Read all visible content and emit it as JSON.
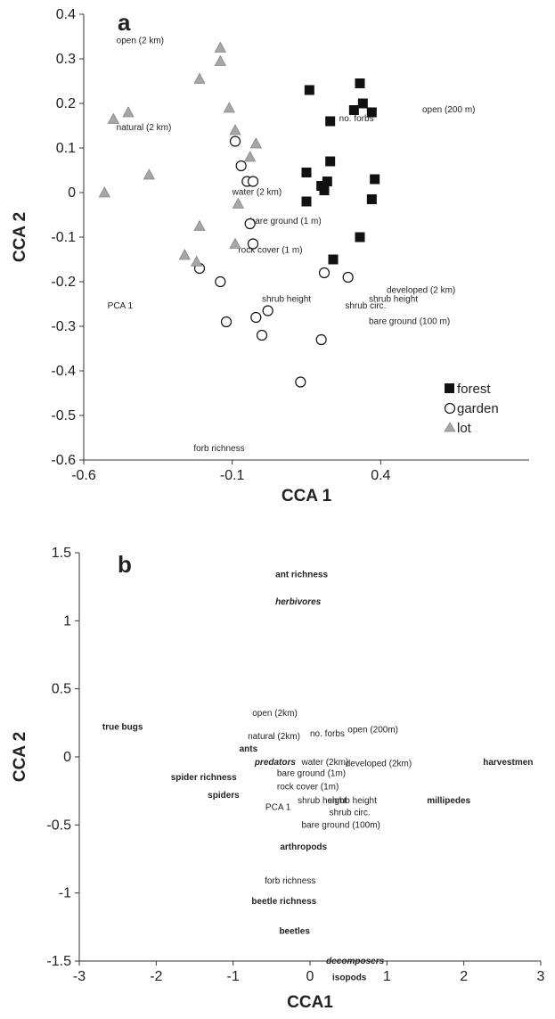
{
  "chart_data": [
    {
      "type": "scatter",
      "panel_label": "a",
      "xlabel": "CCA 1",
      "ylabel": "CCA 2",
      "xlim": [
        -0.6,
        0.9
      ],
      "ylim": [
        -0.6,
        0.4
      ],
      "xticks": [
        -0.6,
        -0.1,
        0.4
      ],
      "xtick_labels": [
        "-0.6",
        "-0.1",
        "0.4"
      ],
      "yticks": [
        -0.6,
        -0.5,
        -0.4,
        -0.3,
        -0.2,
        -0.1,
        0,
        0.1,
        0.2,
        0.3,
        0.4
      ],
      "ytick_labels": [
        "-0.6",
        "-0.5",
        "-0.4",
        "-0.3",
        "-0.2",
        "-0.1",
        "0",
        "0.1",
        "0.2",
        "0.3",
        "0.4"
      ],
      "grid": false,
      "legend_position": "bottom-right",
      "series": [
        {
          "name": "forest",
          "marker": "square",
          "color": "#111111",
          "points": [
            [
              0.16,
              0.23
            ],
            [
              0.33,
              0.245
            ],
            [
              0.34,
              0.2
            ],
            [
              0.31,
              0.185
            ],
            [
              0.37,
              0.18
            ],
            [
              0.23,
              0.16
            ],
            [
              0.38,
              0.03
            ],
            [
              0.23,
              0.07
            ],
            [
              0.15,
              0.045
            ],
            [
              0.2,
              0.015
            ],
            [
              0.22,
              0.025
            ],
            [
              0.21,
              0.005
            ],
            [
              0.37,
              -0.015
            ],
            [
              0.15,
              -0.02
            ],
            [
              0.24,
              -0.15
            ],
            [
              0.33,
              -0.1
            ]
          ]
        },
        {
          "name": "garden",
          "marker": "circle",
          "color": "#ffffff",
          "points": [
            [
              -0.09,
              0.115
            ],
            [
              -0.07,
              0.06
            ],
            [
              -0.05,
              0.025
            ],
            [
              -0.03,
              0.025
            ],
            [
              -0.04,
              -0.07
            ],
            [
              -0.03,
              -0.115
            ],
            [
              -0.21,
              -0.17
            ],
            [
              -0.14,
              -0.2
            ],
            [
              -0.12,
              -0.29
            ],
            [
              -0.02,
              -0.28
            ],
            [
              0.02,
              -0.265
            ],
            [
              0.0,
              -0.32
            ],
            [
              0.21,
              -0.18
            ],
            [
              0.29,
              -0.19
            ],
            [
              0.2,
              -0.33
            ],
            [
              0.13,
              -0.425
            ]
          ]
        },
        {
          "name": "lot",
          "marker": "triangle",
          "color": "#a6a6a6",
          "points": [
            [
              -0.14,
              0.325
            ],
            [
              -0.14,
              0.295
            ],
            [
              -0.21,
              0.255
            ],
            [
              -0.11,
              0.19
            ],
            [
              -0.09,
              0.14
            ],
            [
              -0.5,
              0.165
            ],
            [
              -0.45,
              0.18
            ],
            [
              -0.04,
              0.08
            ],
            [
              -0.02,
              0.11
            ],
            [
              -0.38,
              0.04
            ],
            [
              -0.53,
              0.0
            ],
            [
              -0.08,
              -0.025
            ],
            [
              -0.21,
              -0.075
            ],
            [
              -0.09,
              -0.115
            ],
            [
              -0.26,
              -0.14
            ],
            [
              -0.22,
              -0.155
            ]
          ]
        }
      ],
      "variable_labels": [
        {
          "text": "open (2 km)",
          "x": -0.49,
          "y": 0.335
        },
        {
          "text": "natural (2 km)",
          "x": -0.49,
          "y": 0.14
        },
        {
          "text": "open (200 m)",
          "x": 0.54,
          "y": 0.18
        },
        {
          "text": "no. forbs",
          "x": 0.26,
          "y": 0.16
        },
        {
          "text": "water (2 km)",
          "x": -0.1,
          "y": -0.005
        },
        {
          "text": "bare ground (1 m)",
          "x": -0.04,
          "y": -0.07
        },
        {
          "text": "rock cover (1 m)",
          "x": -0.08,
          "y": -0.135
        },
        {
          "text": "developed (2 km)",
          "x": 0.42,
          "y": -0.225
        },
        {
          "text": "shrub height",
          "x": 0.36,
          "y": -0.245
        },
        {
          "text": "shrub circ.",
          "x": 0.28,
          "y": -0.26
        },
        {
          "text": "shrub height",
          "x": 0.0,
          "y": -0.245
        },
        {
          "text": "bare ground (100 m)",
          "x": 0.36,
          "y": -0.295
        },
        {
          "text": "PCA 1",
          "x": -0.52,
          "y": -0.26
        },
        {
          "text": "forb richness",
          "x": -0.23,
          "y": -0.58
        }
      ]
    },
    {
      "type": "scatter",
      "panel_label": "b",
      "xlabel": "CCA1",
      "ylabel": "CCA 2",
      "xlim": [
        -3,
        3
      ],
      "ylim": [
        -1.5,
        1.5
      ],
      "xticks": [
        -3,
        -2,
        -1,
        0,
        1,
        2,
        3
      ],
      "xtick_labels": [
        "-3",
        "-2",
        "-1",
        "0",
        "1",
        "2",
        "3"
      ],
      "yticks": [
        -1.5,
        -1,
        -0.5,
        0,
        0.5,
        1,
        1.5
      ],
      "ytick_labels": [
        "-1.5",
        "-1",
        "-0.5",
        "0",
        "0.5",
        "1",
        "1.5"
      ],
      "grid": false,
      "colors": {
        "black": "#111111",
        "grey": "#8c8c8c"
      },
      "variable_labels": [
        {
          "text": "ant richness",
          "x": -0.45,
          "y": 1.32,
          "style": "grey-bold"
        },
        {
          "text": "herbivores",
          "x": -0.45,
          "y": 1.12,
          "style": "bold-italic"
        },
        {
          "text": "open (2km)",
          "x": -0.75,
          "y": 0.3,
          "style": "normal"
        },
        {
          "text": "true bugs",
          "x": -2.7,
          "y": 0.2,
          "style": "bold"
        },
        {
          "text": "natural (2km)",
          "x": -0.81,
          "y": 0.13,
          "style": "normal"
        },
        {
          "text": "no. forbs",
          "x": 0.0,
          "y": 0.15,
          "style": "normal"
        },
        {
          "text": "open (200m)",
          "x": 0.49,
          "y": 0.18,
          "style": "normal"
        },
        {
          "text": "ants",
          "x": -0.92,
          "y": 0.04,
          "style": "bold"
        },
        {
          "text": "predators",
          "x": -0.72,
          "y": -0.06,
          "style": "bold-italic"
        },
        {
          "text": "water (2km)",
          "x": -0.11,
          "y": -0.06,
          "style": "normal"
        },
        {
          "text": "harvestmen",
          "x": 2.25,
          "y": -0.06,
          "style": "bold"
        },
        {
          "text": "spider richness",
          "x": -1.81,
          "y": -0.17,
          "style": "grey-bold"
        },
        {
          "text": "bare ground (1m)",
          "x": -0.43,
          "y": -0.14,
          "style": "normal"
        },
        {
          "text": "developed (2km)",
          "x": 0.46,
          "y": -0.07,
          "style": "normal"
        },
        {
          "text": "spiders",
          "x": -1.33,
          "y": -0.3,
          "style": "bold"
        },
        {
          "text": "rock cover (1m)",
          "x": -0.43,
          "y": -0.24,
          "style": "normal"
        },
        {
          "text": "shrub height",
          "x": -0.16,
          "y": -0.34,
          "style": "normal"
        },
        {
          "text": "shrub height",
          "x": 0.23,
          "y": -0.34,
          "style": "normal"
        },
        {
          "text": "millipedes",
          "x": 1.52,
          "y": -0.34,
          "style": "bold"
        },
        {
          "text": "PCA 1",
          "x": -0.58,
          "y": -0.39,
          "style": "normal"
        },
        {
          "text": "shrub circ.",
          "x": 0.25,
          "y": -0.43,
          "style": "normal"
        },
        {
          "text": "bare ground (100m)",
          "x": -0.11,
          "y": -0.52,
          "style": "normal"
        },
        {
          "text": "arthropods",
          "x": -0.39,
          "y": -0.68,
          "style": "bold"
        },
        {
          "text": "forb richness",
          "x": -0.59,
          "y": -0.93,
          "style": "normal"
        },
        {
          "text": "beetle richness",
          "x": -0.76,
          "y": -1.08,
          "style": "grey-bold"
        },
        {
          "text": "beetles",
          "x": -0.4,
          "y": -1.3,
          "style": "bold"
        },
        {
          "text": "decomposers",
          "x": 0.21,
          "y": -1.52,
          "style": "bold-italic"
        },
        {
          "text": "isopods",
          "x": 0.29,
          "y": -1.64,
          "style": "bold"
        }
      ]
    }
  ]
}
